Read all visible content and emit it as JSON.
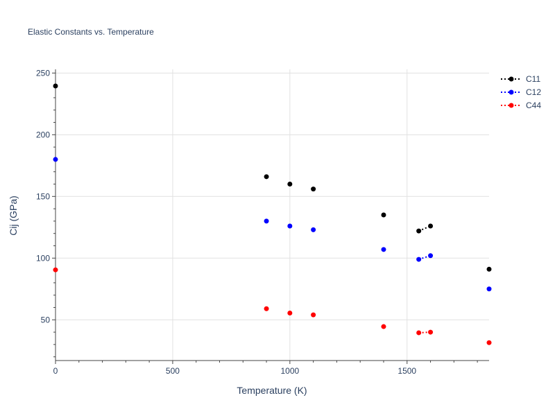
{
  "chart_data": {
    "type": "scatter",
    "title": "Elastic Constants vs. Temperature",
    "xlabel": "Temperature (K)",
    "ylabel": "Cij (GPa)",
    "xlim": [
      0,
      1850
    ],
    "ylim": [
      17,
      253
    ],
    "x_ticks": [
      0,
      500,
      1000,
      1500
    ],
    "y_ticks": [
      50,
      100,
      150,
      200,
      250
    ],
    "grid": true,
    "legend": "top-right",
    "series": [
      {
        "name": "C11",
        "color": "#000000",
        "mode": "markers with dotted lines",
        "points": [
          {
            "x": 0,
            "y": 239.5
          },
          {
            "x": 900,
            "y": 166
          },
          {
            "x": 1000,
            "y": 160
          },
          {
            "x": 1100,
            "y": 156
          },
          {
            "x": 1400,
            "y": 135
          },
          {
            "x": 1550,
            "y": 122
          },
          {
            "x": 1600,
            "y": 126
          },
          {
            "x": 1850,
            "y": 91
          }
        ],
        "segments": [
          [
            5,
            6
          ]
        ]
      },
      {
        "name": "C12",
        "color": "#0000ff",
        "mode": "markers with dotted lines",
        "points": [
          {
            "x": 0,
            "y": 180
          },
          {
            "x": 900,
            "y": 130
          },
          {
            "x": 1000,
            "y": 126
          },
          {
            "x": 1100,
            "y": 123
          },
          {
            "x": 1400,
            "y": 107
          },
          {
            "x": 1550,
            "y": 99
          },
          {
            "x": 1600,
            "y": 102
          },
          {
            "x": 1850,
            "y": 75
          }
        ],
        "segments": [
          [
            5,
            6
          ]
        ]
      },
      {
        "name": "C44",
        "color": "#ff0000",
        "mode": "markers with dotted lines",
        "points": [
          {
            "x": 0,
            "y": 90.5
          },
          {
            "x": 900,
            "y": 59
          },
          {
            "x": 1000,
            "y": 55.5
          },
          {
            "x": 1100,
            "y": 54
          },
          {
            "x": 1400,
            "y": 44.5
          },
          {
            "x": 1550,
            "y": 39.5
          },
          {
            "x": 1600,
            "y": 40
          },
          {
            "x": 1850,
            "y": 31.5
          }
        ],
        "segments": [
          [
            5,
            6
          ]
        ]
      }
    ]
  }
}
